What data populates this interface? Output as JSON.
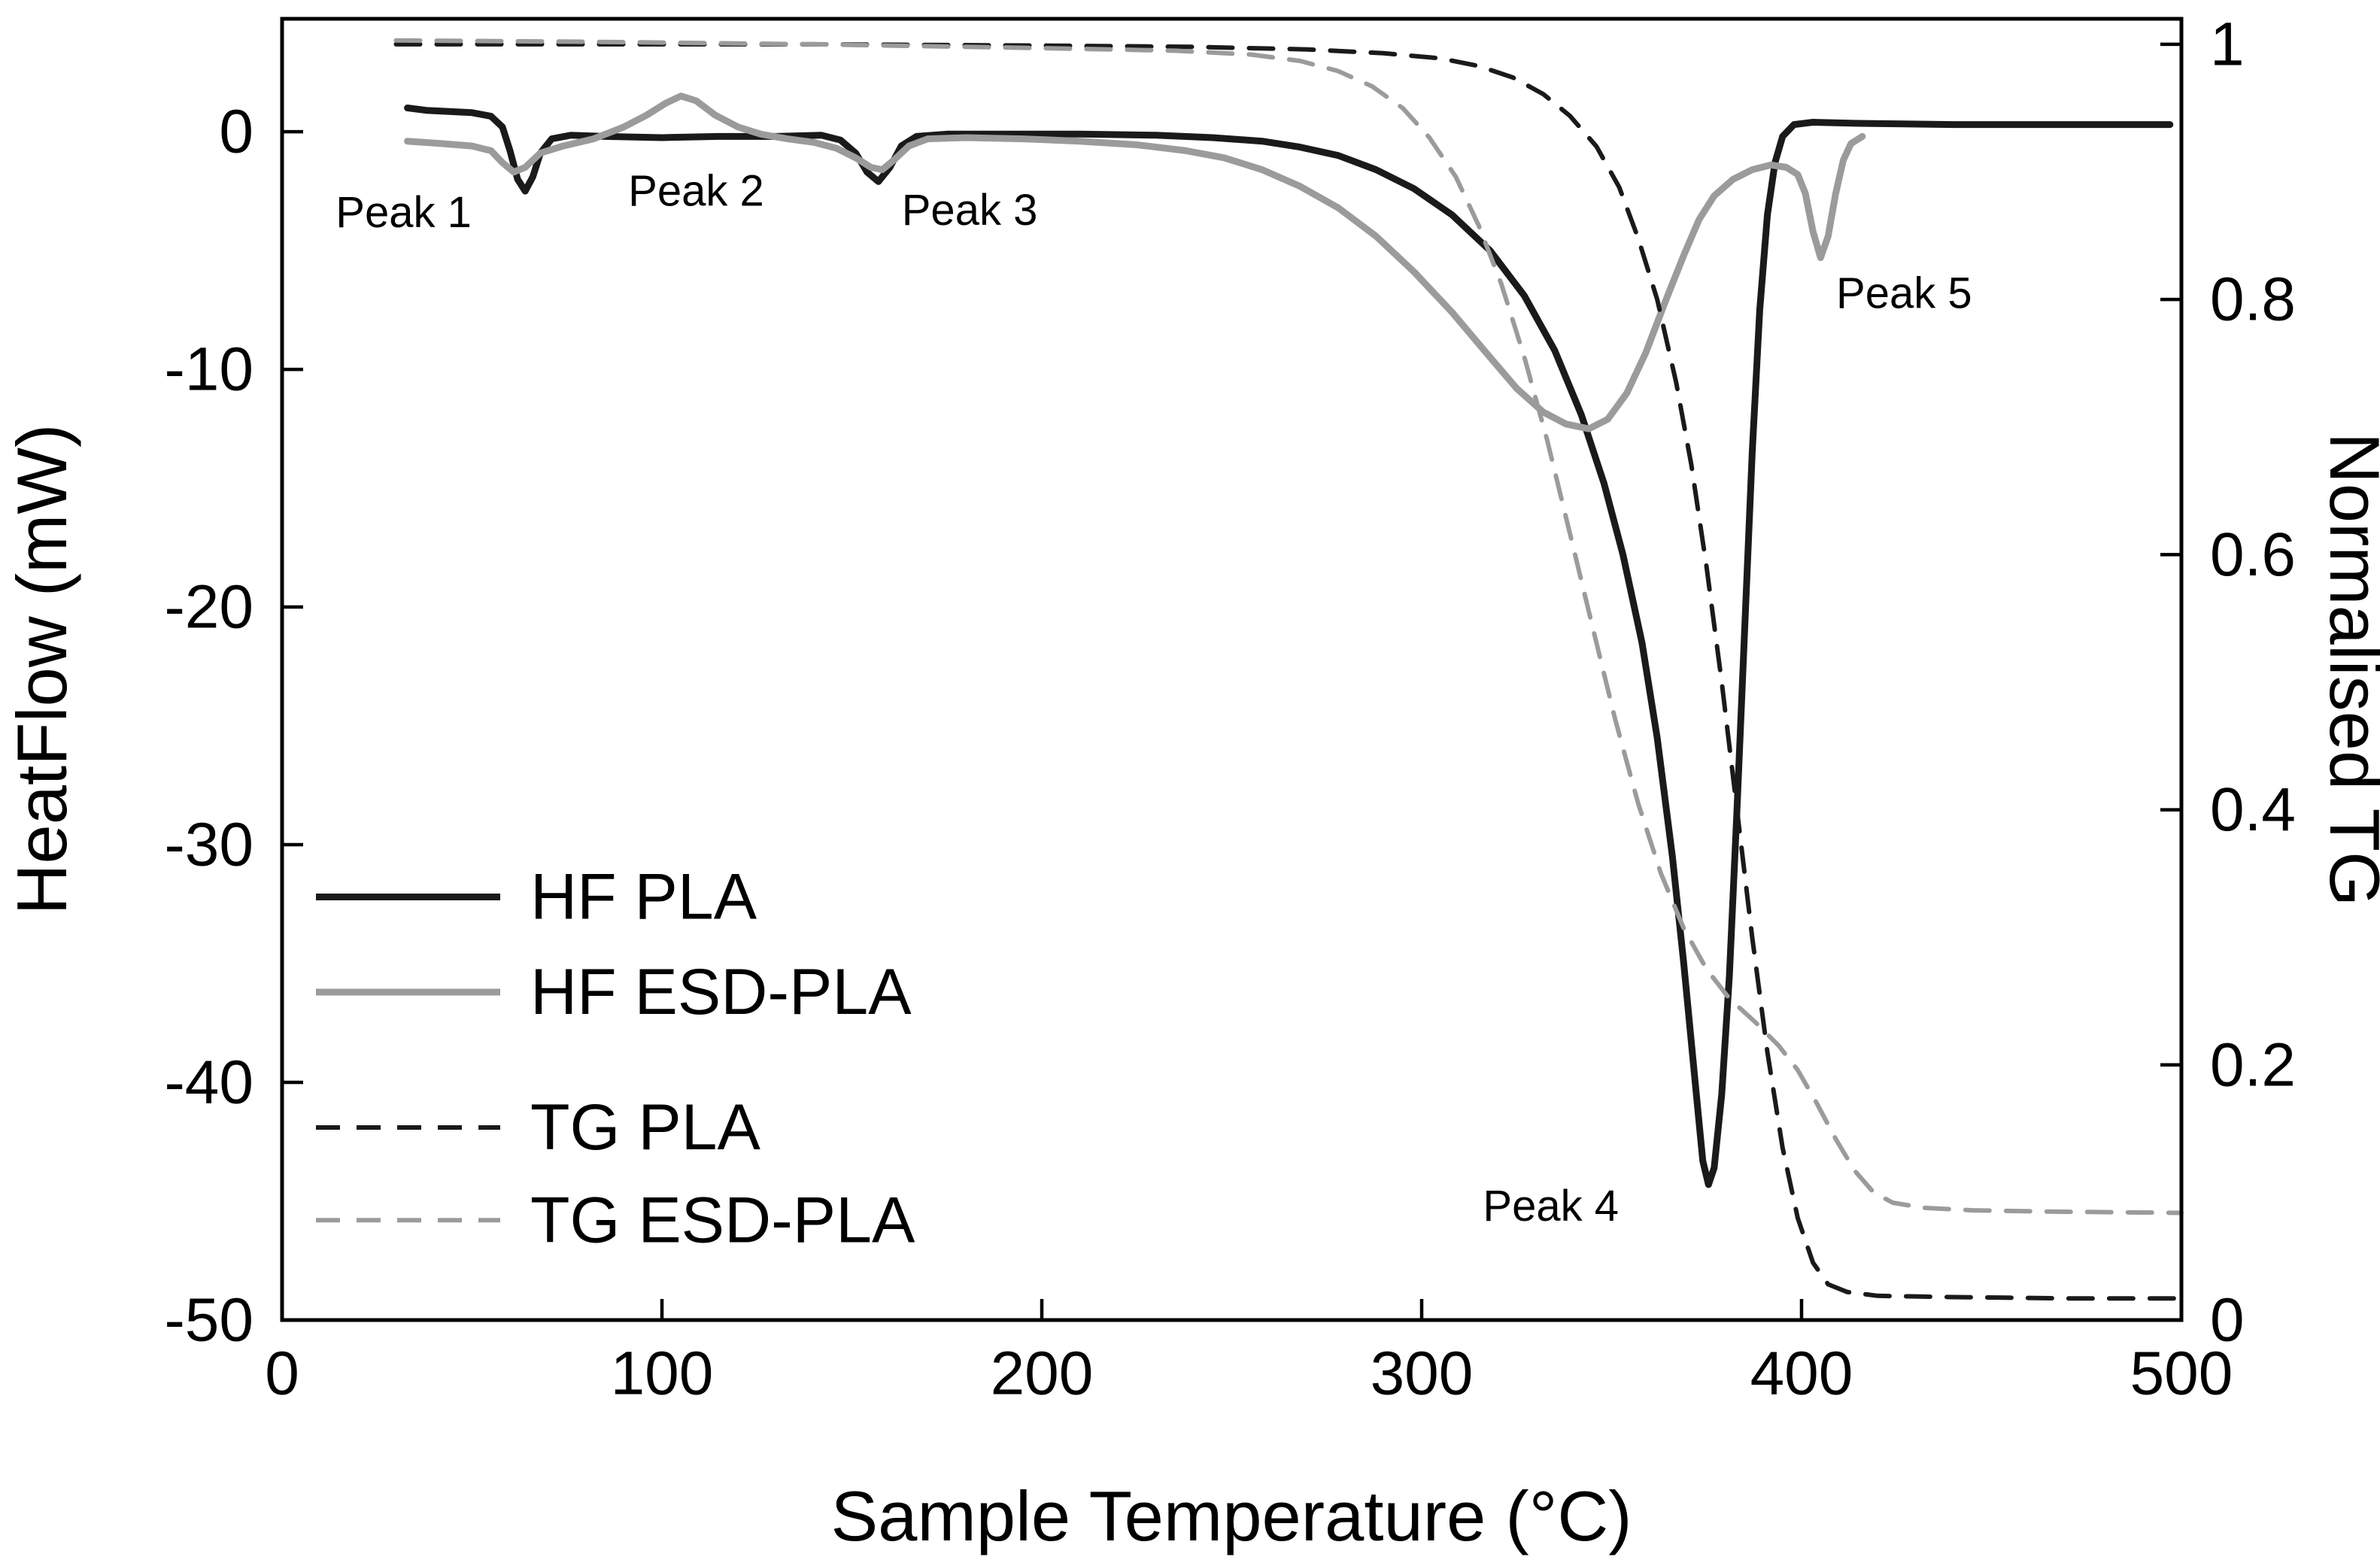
{
  "figure": {
    "background": "#ffffff",
    "frame_color": "#000000",
    "text_color": "#000000"
  },
  "chart_data": {
    "type": "line",
    "title": "",
    "xlabel": "Sample Temperature (°C)",
    "ylabel_left": "HeatFlow (mW)",
    "ylabel_right": "Normalised TG",
    "xlim": [
      0,
      500
    ],
    "ylim_left": [
      -50,
      4.75
    ],
    "ylim_right": [
      0,
      1.02
    ],
    "x_ticks": [
      0,
      100,
      200,
      300,
      400,
      500
    ],
    "y_left_ticks": [
      0,
      -10,
      -20,
      -30,
      -40,
      -50
    ],
    "y_right_ticks": [
      1,
      0.8,
      0.6,
      0.4,
      0.2,
      0
    ],
    "y_right_tick_labels": [
      "1",
      "0.8",
      "0.6",
      "0.4",
      "0.2",
      "0"
    ],
    "grid": false,
    "series": [
      {
        "name": "HF PLA",
        "axis": "left",
        "dash": "solid",
        "color": "#1a1a1a",
        "width": 9,
        "points": [
          [
            33,
            1.0
          ],
          [
            38,
            0.9
          ],
          [
            44,
            0.85
          ],
          [
            50,
            0.8
          ],
          [
            55,
            0.65
          ],
          [
            58,
            0.2
          ],
          [
            60,
            -0.8
          ],
          [
            62,
            -2.0
          ],
          [
            64,
            -2.5
          ],
          [
            66,
            -1.9
          ],
          [
            68,
            -0.9
          ],
          [
            71,
            -0.3
          ],
          [
            76,
            -0.15
          ],
          [
            85,
            -0.2
          ],
          [
            100,
            -0.25
          ],
          [
            115,
            -0.2
          ],
          [
            130,
            -0.2
          ],
          [
            142,
            -0.15
          ],
          [
            147,
            -0.35
          ],
          [
            151,
            -0.9
          ],
          [
            154,
            -1.7
          ],
          [
            157,
            -2.1
          ],
          [
            160,
            -1.5
          ],
          [
            163,
            -0.6
          ],
          [
            167,
            -0.2
          ],
          [
            175,
            -0.1
          ],
          [
            190,
            -0.1
          ],
          [
            210,
            -0.1
          ],
          [
            230,
            -0.15
          ],
          [
            245,
            -0.25
          ],
          [
            258,
            -0.4
          ],
          [
            268,
            -0.65
          ],
          [
            278,
            -1.0
          ],
          [
            288,
            -1.6
          ],
          [
            298,
            -2.4
          ],
          [
            308,
            -3.5
          ],
          [
            318,
            -5.0
          ],
          [
            327,
            -6.9
          ],
          [
            335,
            -9.2
          ],
          [
            342,
            -11.9
          ],
          [
            348,
            -14.8
          ],
          [
            353,
            -17.8
          ],
          [
            358,
            -21.5
          ],
          [
            362,
            -25.5
          ],
          [
            366,
            -30.5
          ],
          [
            369,
            -35.0
          ],
          [
            372,
            -40.0
          ],
          [
            374,
            -43.3
          ],
          [
            375.5,
            -44.3
          ],
          [
            377,
            -43.6
          ],
          [
            379,
            -40.5
          ],
          [
            381,
            -35.5
          ],
          [
            383,
            -28.5
          ],
          [
            385,
            -21.0
          ],
          [
            387,
            -13.5
          ],
          [
            389,
            -7.5
          ],
          [
            391,
            -3.5
          ],
          [
            393,
            -1.3
          ],
          [
            395,
            -0.2
          ],
          [
            398,
            0.3
          ],
          [
            403,
            0.4
          ],
          [
            415,
            0.35
          ],
          [
            440,
            0.3
          ],
          [
            470,
            0.3
          ],
          [
            497,
            0.3
          ]
        ]
      },
      {
        "name": "HF ESD-PLA",
        "axis": "left",
        "dash": "solid",
        "color": "#9b9b9b",
        "width": 9,
        "points": [
          [
            33,
            -0.4
          ],
          [
            42,
            -0.5
          ],
          [
            50,
            -0.6
          ],
          [
            55,
            -0.8
          ],
          [
            58,
            -1.3
          ],
          [
            61,
            -1.7
          ],
          [
            64,
            -1.5
          ],
          [
            68,
            -0.9
          ],
          [
            74,
            -0.6
          ],
          [
            82,
            -0.3
          ],
          [
            90,
            0.2
          ],
          [
            96,
            0.7
          ],
          [
            101,
            1.2
          ],
          [
            105,
            1.5
          ],
          [
            109,
            1.3
          ],
          [
            114,
            0.7
          ],
          [
            120,
            0.2
          ],
          [
            126,
            -0.1
          ],
          [
            133,
            -0.3
          ],
          [
            140,
            -0.45
          ],
          [
            146,
            -0.7
          ],
          [
            151,
            -1.1
          ],
          [
            155,
            -1.5
          ],
          [
            158,
            -1.6
          ],
          [
            161,
            -1.2
          ],
          [
            165,
            -0.6
          ],
          [
            170,
            -0.3
          ],
          [
            180,
            -0.25
          ],
          [
            195,
            -0.3
          ],
          [
            210,
            -0.4
          ],
          [
            225,
            -0.55
          ],
          [
            238,
            -0.8
          ],
          [
            248,
            -1.1
          ],
          [
            258,
            -1.6
          ],
          [
            268,
            -2.3
          ],
          [
            278,
            -3.2
          ],
          [
            288,
            -4.4
          ],
          [
            298,
            -5.9
          ],
          [
            308,
            -7.6
          ],
          [
            317,
            -9.3
          ],
          [
            325,
            -10.8
          ],
          [
            332,
            -11.8
          ],
          [
            338,
            -12.3
          ],
          [
            344,
            -12.5
          ],
          [
            349,
            -12.1
          ],
          [
            354,
            -11.0
          ],
          [
            359,
            -9.3
          ],
          [
            364,
            -7.2
          ],
          [
            369,
            -5.2
          ],
          [
            373,
            -3.7
          ],
          [
            377,
            -2.7
          ],
          [
            382,
            -2.0
          ],
          [
            387,
            -1.6
          ],
          [
            392,
            -1.4
          ],
          [
            396,
            -1.5
          ],
          [
            399,
            -1.8
          ],
          [
            401,
            -2.6
          ],
          [
            403,
            -4.2
          ],
          [
            405,
            -5.3
          ],
          [
            407,
            -4.4
          ],
          [
            409,
            -2.6
          ],
          [
            411,
            -1.2
          ],
          [
            413,
            -0.5
          ],
          [
            416,
            -0.2
          ]
        ]
      },
      {
        "name": "TG PLA",
        "axis": "right",
        "dash": "dashed",
        "color": "#1a1a1a",
        "width": 6,
        "points": [
          [
            30,
            1.0
          ],
          [
            80,
            1.0
          ],
          [
            140,
            1.0
          ],
          [
            200,
            0.999
          ],
          [
            240,
            0.998
          ],
          [
            270,
            0.996
          ],
          [
            290,
            0.993
          ],
          [
            305,
            0.989
          ],
          [
            315,
            0.983
          ],
          [
            324,
            0.974
          ],
          [
            332,
            0.961
          ],
          [
            339,
            0.944
          ],
          [
            346,
            0.92
          ],
          [
            352,
            0.888
          ],
          [
            357,
            0.848
          ],
          [
            362,
            0.8
          ],
          [
            367,
            0.735
          ],
          [
            371,
            0.67
          ],
          [
            375,
            0.59
          ],
          [
            379,
            0.5
          ],
          [
            383,
            0.4
          ],
          [
            387,
            0.3
          ],
          [
            391,
            0.21
          ],
          [
            395,
            0.135
          ],
          [
            399,
            0.08
          ],
          [
            403,
            0.045
          ],
          [
            407,
            0.028
          ],
          [
            412,
            0.022
          ],
          [
            420,
            0.019
          ],
          [
            440,
            0.018
          ],
          [
            470,
            0.017
          ],
          [
            500,
            0.017
          ]
        ]
      },
      {
        "name": "TG ESD-PLA",
        "axis": "right",
        "dash": "dashed",
        "color": "#9b9b9b",
        "width": 6,
        "points": [
          [
            30,
            1.003
          ],
          [
            80,
            1.002
          ],
          [
            140,
            1.0
          ],
          [
            200,
            0.997
          ],
          [
            235,
            0.995
          ],
          [
            255,
            0.992
          ],
          [
            268,
            0.987
          ],
          [
            278,
            0.979
          ],
          [
            287,
            0.967
          ],
          [
            295,
            0.95
          ],
          [
            302,
            0.927
          ],
          [
            309,
            0.896
          ],
          [
            315,
            0.858
          ],
          [
            321,
            0.812
          ],
          [
            327,
            0.755
          ],
          [
            333,
            0.69
          ],
          [
            339,
            0.617
          ],
          [
            345,
            0.543
          ],
          [
            351,
            0.47
          ],
          [
            357,
            0.405
          ],
          [
            363,
            0.35
          ],
          [
            369,
            0.307
          ],
          [
            375,
            0.275
          ],
          [
            381,
            0.252
          ],
          [
            388,
            0.233
          ],
          [
            394,
            0.215
          ],
          [
            399,
            0.196
          ],
          [
            404,
            0.17
          ],
          [
            409,
            0.142
          ],
          [
            414,
            0.117
          ],
          [
            419,
            0.1
          ],
          [
            424,
            0.092
          ],
          [
            432,
            0.088
          ],
          [
            445,
            0.086
          ],
          [
            465,
            0.085
          ],
          [
            500,
            0.084
          ]
        ]
      }
    ],
    "annotations": [
      {
        "text": "Peak 1",
        "x": 32,
        "y": -3.4,
        "axis": "left"
      },
      {
        "text": "Peak 2",
        "x": 109,
        "y": -2.5,
        "axis": "left"
      },
      {
        "text": "Peak 3",
        "x": 181,
        "y": -3.3,
        "axis": "left"
      },
      {
        "text": "Peak 4",
        "x": 334,
        "y": -45.2,
        "axis": "left"
      },
      {
        "text": "Peak 5",
        "x": 427,
        "y": -6.8,
        "axis": "left"
      }
    ],
    "legend": {
      "position": "inside-lower-left",
      "entries": [
        {
          "label": "HF PLA",
          "series": 0,
          "y_mw": -32.2
        },
        {
          "label": "HF ESD-PLA",
          "series": 1,
          "y_mw": -36.2
        },
        {
          "label": "TG PLA",
          "series": 2,
          "y_mw": -41.9
        },
        {
          "label": "TG ESD-PLA",
          "series": 3,
          "y_mw": -45.8
        }
      ]
    }
  }
}
